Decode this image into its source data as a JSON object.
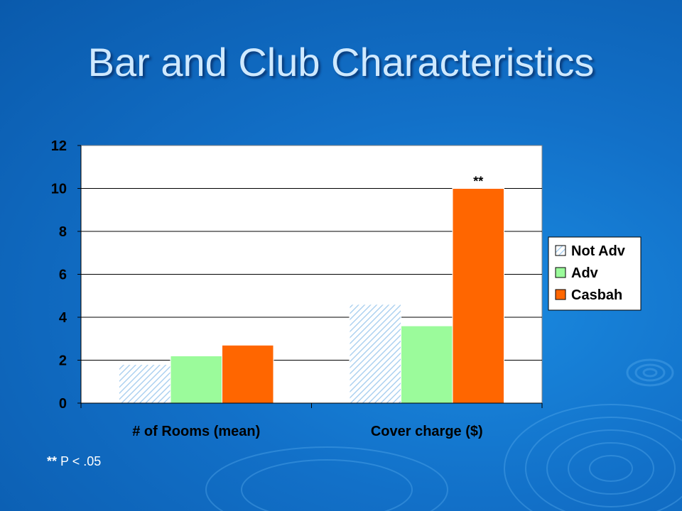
{
  "slide": {
    "title": "Bar and Club Characteristics",
    "footnote_marker": "**",
    "footnote_text": " P < .05"
  },
  "colors": {
    "not_adv": "#cfe6f7",
    "adv": "#9bfb9b",
    "casbah": "#ff6600",
    "plot_bg": "#ffffff",
    "text": "#000000"
  },
  "chart_data": {
    "type": "bar",
    "categories": [
      "# of Rooms (mean)",
      "Cover charge ($)"
    ],
    "series": [
      {
        "name": "Not Adv",
        "values": [
          1.8,
          4.6
        ],
        "pattern": "hatched"
      },
      {
        "name": "Adv",
        "values": [
          2.2,
          3.6
        ]
      },
      {
        "name": "Casbah",
        "values": [
          2.7,
          10
        ]
      }
    ],
    "ylim": [
      0,
      12
    ],
    "yticks": [
      0,
      2,
      4,
      6,
      8,
      10,
      12
    ],
    "grid": true,
    "legend": "right",
    "annotations": [
      {
        "category": 1,
        "series": 2,
        "text": "**"
      }
    ],
    "xlabel": "",
    "ylabel": ""
  }
}
